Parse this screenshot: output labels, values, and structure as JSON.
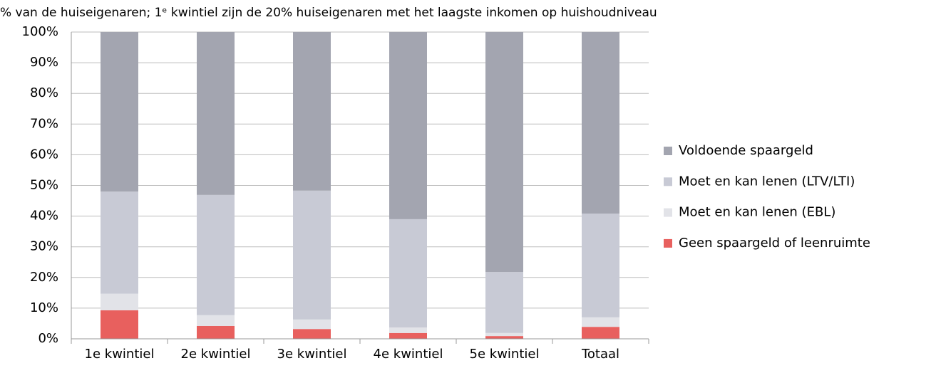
{
  "chart_data": {
    "type": "stacked_bar",
    "title": "% van de huiseigenaren; 1ᵉ kwintiel zijn de 20% huiseigenaren met het laagste inkomen op huishoudniveau",
    "categories": [
      "1e kwintiel",
      "2e kwintiel",
      "3e kwintiel",
      "4e kwintiel",
      "5e kwintiel",
      "Totaal"
    ],
    "series": [
      {
        "name": "Geen spaargeld of leenruimte",
        "color": "#e8605e",
        "values": [
          9.3,
          4.2,
          3.2,
          1.9,
          0.9,
          3.9
        ]
      },
      {
        "name": "Moet en kan lenen (EBL)",
        "color": "#e2e3e8",
        "values": [
          5.4,
          3.5,
          3.1,
          1.8,
          1.0,
          3.1
        ]
      },
      {
        "name": "Moet en kan lenen (LTV/LTI)",
        "color": "#c8cad5",
        "values": [
          33.3,
          39.2,
          42.0,
          35.3,
          19.9,
          33.8
        ]
      },
      {
        "name": "Voldoende spaargeld",
        "color": "#a3a5b0",
        "values": [
          52.0,
          53.1,
          51.7,
          61.0,
          78.2,
          59.2
        ]
      }
    ],
    "ylim": [
      0,
      100
    ],
    "yticks": [
      {
        "value": 0,
        "label": "0%"
      },
      {
        "value": 10,
        "label": "10%"
      },
      {
        "value": 20,
        "label": "20%"
      },
      {
        "value": 30,
        "label": "30%"
      },
      {
        "value": 40,
        "label": "40%"
      },
      {
        "value": 50,
        "label": "50%"
      },
      {
        "value": 60,
        "label": "60%"
      },
      {
        "value": 70,
        "label": "70%"
      },
      {
        "value": 80,
        "label": "80%"
      },
      {
        "value": 90,
        "label": "90%"
      },
      {
        "value": 100,
        "label": "100%"
      }
    ],
    "grid": true,
    "legend": "right"
  }
}
